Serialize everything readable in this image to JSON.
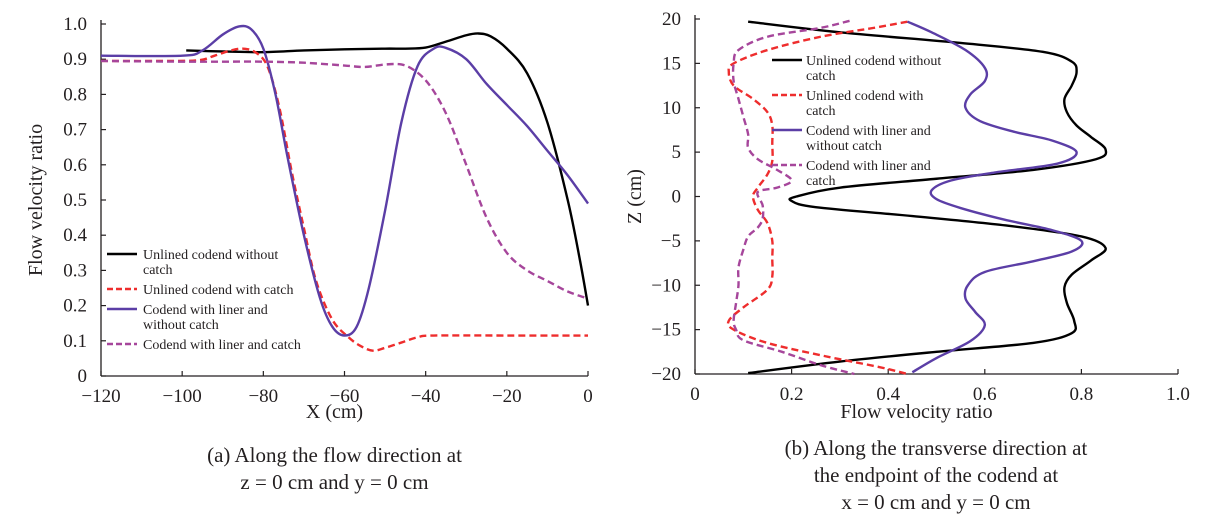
{
  "chart_data": [
    {
      "type": "line",
      "caption_lines": [
        "(a) Along the flow direction at",
        "z = 0 cm and y = 0 cm"
      ],
      "xlabel": "X (cm)",
      "ylabel": "Flow velocity ratio",
      "xlim": [
        -120,
        0
      ],
      "ylim": [
        0,
        1.0
      ],
      "xticks": [
        -120,
        -100,
        -80,
        -60,
        -40,
        -20,
        0
      ],
      "xtick_labels": [
        "−120",
        "−100",
        "−80",
        "−60",
        "−40",
        "−20",
        "0"
      ],
      "yticks": [
        0,
        0.1,
        0.2,
        0.3,
        0.4,
        0.5,
        0.6,
        0.7,
        0.8,
        0.9,
        1.0
      ],
      "ytick_labels": [
        "0",
        "0.1",
        "0.2",
        "0.3",
        "0.4",
        "0.5",
        "0.6",
        "0.7",
        "0.8",
        "0.9",
        "1.0"
      ],
      "legend_position": "lower-left",
      "series": [
        {
          "name": "Unlined codend without catch",
          "legend_lines": [
            "Unlined codend without",
            "catch"
          ],
          "color": "#000000",
          "style": "solid",
          "points": [
            [
              -99,
              0.925
            ],
            [
              -90,
              0.922
            ],
            [
              -80,
              0.92
            ],
            [
              -70,
              0.925
            ],
            [
              -60,
              0.928
            ],
            [
              -50,
              0.93
            ],
            [
              -45,
              0.93
            ],
            [
              -40,
              0.933
            ],
            [
              -35,
              0.95
            ],
            [
              -30,
              0.968
            ],
            [
              -27,
              0.973
            ],
            [
              -24,
              0.965
            ],
            [
              -20,
              0.93
            ],
            [
              -15,
              0.86
            ],
            [
              -10,
              0.72
            ],
            [
              -5,
              0.5
            ],
            [
              -2,
              0.33
            ],
            [
              0,
              0.2
            ]
          ]
        },
        {
          "name": "Unlined codend with catch",
          "legend_lines": [
            "Unlined codend with catch"
          ],
          "color": "#ee2d2d",
          "style": "dashed",
          "points": [
            [
              -120,
              0.895
            ],
            [
              -105,
              0.895
            ],
            [
              -96,
              0.897
            ],
            [
              -92,
              0.91
            ],
            [
              -88,
              0.925
            ],
            [
              -85,
              0.93
            ],
            [
              -82,
              0.92
            ],
            [
              -79,
              0.88
            ],
            [
              -76,
              0.76
            ],
            [
              -73,
              0.58
            ],
            [
              -70,
              0.42
            ],
            [
              -67,
              0.27
            ],
            [
              -63,
              0.16
            ],
            [
              -59,
              0.11
            ],
            [
              -56,
              0.085
            ],
            [
              -53,
              0.072
            ],
            [
              -50,
              0.08
            ],
            [
              -46,
              0.095
            ],
            [
              -42,
              0.11
            ],
            [
              -38,
              0.115
            ],
            [
              -20,
              0.115
            ],
            [
              0,
              0.115
            ]
          ]
        },
        {
          "name": "Codend with liner and without catch",
          "legend_lines": [
            "Codend with liner and",
            "without catch"
          ],
          "color": "#5b3ea6",
          "style": "solid",
          "points": [
            [
              -120,
              0.91
            ],
            [
              -100,
              0.91
            ],
            [
              -95,
              0.925
            ],
            [
              -90,
              0.97
            ],
            [
              -86,
              0.993
            ],
            [
              -83,
              0.985
            ],
            [
              -80,
              0.93
            ],
            [
              -77,
              0.8
            ],
            [
              -74,
              0.62
            ],
            [
              -70,
              0.4
            ],
            [
              -66,
              0.22
            ],
            [
              -63,
              0.14
            ],
            [
              -60,
              0.115
            ],
            [
              -57,
              0.14
            ],
            [
              -54,
              0.25
            ],
            [
              -50,
              0.47
            ],
            [
              -46,
              0.72
            ],
            [
              -42,
              0.88
            ],
            [
              -38,
              0.93
            ],
            [
              -35,
              0.932
            ],
            [
              -30,
              0.9
            ],
            [
              -25,
              0.83
            ],
            [
              -20,
              0.77
            ],
            [
              -15,
              0.71
            ],
            [
              -10,
              0.64
            ],
            [
              -5,
              0.57
            ],
            [
              0,
              0.49
            ]
          ]
        },
        {
          "name": "Codend with liner and catch",
          "legend_lines": [
            "Codend with liner and catch"
          ],
          "color": "#a6469b",
          "style": "dashed",
          "points": [
            [
              -120,
              0.895
            ],
            [
              -100,
              0.893
            ],
            [
              -90,
              0.893
            ],
            [
              -80,
              0.893
            ],
            [
              -70,
              0.89
            ],
            [
              -60,
              0.882
            ],
            [
              -55,
              0.878
            ],
            [
              -50,
              0.885
            ],
            [
              -46,
              0.885
            ],
            [
              -43,
              0.87
            ],
            [
              -40,
              0.84
            ],
            [
              -37,
              0.79
            ],
            [
              -34,
              0.72
            ],
            [
              -30,
              0.6
            ],
            [
              -25,
              0.45
            ],
            [
              -20,
              0.35
            ],
            [
              -15,
              0.3
            ],
            [
              -10,
              0.27
            ],
            [
              -5,
              0.24
            ],
            [
              0,
              0.22
            ]
          ]
        }
      ]
    },
    {
      "type": "line",
      "caption_lines": [
        "(b) Along the transverse direction at",
        "the endpoint of the codend at",
        "x = 0 cm and y = 0 cm"
      ],
      "xlabel": "Flow velocity ratio",
      "ylabel": "Z (cm)",
      "xlim": [
        0,
        1.0
      ],
      "ylim": [
        -20,
        20
      ],
      "xticks": [
        0,
        0.2,
        0.4,
        0.6,
        0.8,
        1.0
      ],
      "xtick_labels": [
        "0",
        "0.2",
        "0.4",
        "0.6",
        "0.8",
        "1.0"
      ],
      "yticks": [
        -20,
        -15,
        -10,
        -5,
        0,
        5,
        10,
        15,
        20
      ],
      "ytick_labels": [
        "−20",
        "−15",
        "−10",
        "−5",
        "0",
        "5",
        "10",
        "15",
        "20"
      ],
      "legend_position": "upper-right",
      "series": [
        {
          "name": "Unlined codend without catch",
          "legend_lines": [
            "Unlined codend without",
            "catch"
          ],
          "color": "#000000",
          "style": "solid",
          "points": [
            [
              0.11,
              19.7
            ],
            [
              0.3,
              18.5
            ],
            [
              0.55,
              17.3
            ],
            [
              0.72,
              16.3
            ],
            [
              0.78,
              15.2
            ],
            [
              0.79,
              14
            ],
            [
              0.78,
              12.5
            ],
            [
              0.765,
              11
            ],
            [
              0.77,
              9.5
            ],
            [
              0.79,
              8
            ],
            [
              0.82,
              6.7
            ],
            [
              0.85,
              5.3
            ],
            [
              0.83,
              4.2
            ],
            [
              0.7,
              3
            ],
            [
              0.5,
              2
            ],
            [
              0.3,
              1
            ],
            [
              0.21,
              0
            ],
            [
              0.2,
              -0.5
            ],
            [
              0.25,
              -1.2
            ],
            [
              0.45,
              -2.2
            ],
            [
              0.65,
              -3.3
            ],
            [
              0.8,
              -4.5
            ],
            [
              0.85,
              -5.8
            ],
            [
              0.82,
              -7.2
            ],
            [
              0.78,
              -8.8
            ],
            [
              0.765,
              -10.2
            ],
            [
              0.77,
              -12
            ],
            [
              0.785,
              -14
            ],
            [
              0.78,
              -15.4
            ],
            [
              0.7,
              -16.5
            ],
            [
              0.5,
              -17.5
            ],
            [
              0.3,
              -18.6
            ],
            [
              0.11,
              -19.9
            ]
          ]
        },
        {
          "name": "Unlined codend with catch",
          "legend_lines": [
            "Unlined codend with",
            "catch"
          ],
          "color": "#ee2d2d",
          "style": "dashed",
          "points": [
            [
              0.44,
              19.7
            ],
            [
              0.37,
              19
            ],
            [
              0.26,
              18
            ],
            [
              0.15,
              16.5
            ],
            [
              0.08,
              15
            ],
            [
              0.07,
              14
            ],
            [
              0.08,
              12.5
            ],
            [
              0.12,
              11
            ],
            [
              0.15,
              9.5
            ],
            [
              0.16,
              8
            ],
            [
              0.16,
              6
            ],
            [
              0.16,
              4
            ],
            [
              0.15,
              2.5
            ],
            [
              0.13,
              1
            ],
            [
              0.12,
              0
            ],
            [
              0.13,
              -1.5
            ],
            [
              0.15,
              -3
            ],
            [
              0.16,
              -5
            ],
            [
              0.16,
              -7
            ],
            [
              0.16,
              -9
            ],
            [
              0.15,
              -10.5
            ],
            [
              0.1,
              -12.5
            ],
            [
              0.07,
              -14
            ],
            [
              0.08,
              -15
            ],
            [
              0.15,
              -16.5
            ],
            [
              0.27,
              -18
            ],
            [
              0.38,
              -19.2
            ],
            [
              0.44,
              -20
            ]
          ]
        },
        {
          "name": "Codend with liner and without catch",
          "legend_lines": [
            "Codend with liner and",
            "without catch"
          ],
          "color": "#5b3ea6",
          "style": "solid",
          "points": [
            [
              0.44,
              19.7
            ],
            [
              0.49,
              18.5
            ],
            [
              0.56,
              16.5
            ],
            [
              0.6,
              14.5
            ],
            [
              0.6,
              13
            ],
            [
              0.57,
              11.5
            ],
            [
              0.56,
              10
            ],
            [
              0.59,
              8.5
            ],
            [
              0.66,
              7.3
            ],
            [
              0.74,
              6.3
            ],
            [
              0.79,
              5
            ],
            [
              0.75,
              3.7
            ],
            [
              0.62,
              2.7
            ],
            [
              0.53,
              1.8
            ],
            [
              0.49,
              0.7
            ],
            [
              0.5,
              -0.3
            ],
            [
              0.55,
              -1.3
            ],
            [
              0.64,
              -2.6
            ],
            [
              0.74,
              -3.8
            ],
            [
              0.8,
              -5
            ],
            [
              0.78,
              -6.2
            ],
            [
              0.7,
              -7.3
            ],
            [
              0.6,
              -8.5
            ],
            [
              0.565,
              -10
            ],
            [
              0.56,
              -11.5
            ],
            [
              0.58,
              -13
            ],
            [
              0.6,
              -14.5
            ],
            [
              0.57,
              -16.3
            ],
            [
              0.5,
              -18.2
            ],
            [
              0.45,
              -19.8
            ]
          ]
        },
        {
          "name": "Codend with liner and catch",
          "legend_lines": [
            "Codend with liner and",
            "catch"
          ],
          "color": "#a6469b",
          "style": "dashed",
          "points": [
            [
              0.32,
              19.8
            ],
            [
              0.26,
              19
            ],
            [
              0.15,
              18
            ],
            [
              0.09,
              16.5
            ],
            [
              0.08,
              15
            ],
            [
              0.08,
              13
            ],
            [
              0.09,
              11
            ],
            [
              0.1,
              9
            ],
            [
              0.11,
              7
            ],
            [
              0.11,
              5.5
            ],
            [
              0.13,
              4.2
            ],
            [
              0.17,
              3
            ],
            [
              0.2,
              1.8
            ],
            [
              0.17,
              1
            ],
            [
              0.13,
              0.5
            ],
            [
              0.14,
              -1
            ],
            [
              0.14,
              -2.5
            ],
            [
              0.13,
              -3.5
            ],
            [
              0.11,
              -4.5
            ],
            [
              0.1,
              -6
            ],
            [
              0.09,
              -8
            ],
            [
              0.09,
              -10
            ],
            [
              0.085,
              -12
            ],
            [
              0.08,
              -14
            ],
            [
              0.085,
              -15
            ],
            [
              0.1,
              -16.2
            ],
            [
              0.18,
              -17.5
            ],
            [
              0.26,
              -19
            ],
            [
              0.33,
              -20
            ]
          ]
        }
      ]
    }
  ]
}
